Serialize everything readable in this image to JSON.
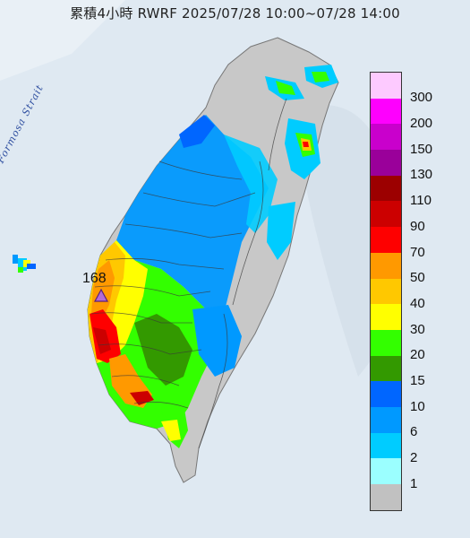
{
  "header": {
    "title": "累積4小時 RWRF 2025/07/28 10:00~07/28 14:00"
  },
  "map": {
    "strait_label": "Formosa Strait",
    "max_value_label": "168",
    "max_marker_icon": "triangle-icon",
    "colors": {
      "sea": "#dfe9f2",
      "land_no_rain": "#c8c8c8"
    }
  },
  "legend": {
    "entries": [
      {
        "label": "300",
        "color": "#fdcaff"
      },
      {
        "label": "200",
        "color": "#fe00fe"
      },
      {
        "label": "150",
        "color": "#c900cc"
      },
      {
        "label": "130",
        "color": "#9a009a"
      },
      {
        "label": "110",
        "color": "#9c0000"
      },
      {
        "label": "90",
        "color": "#cc0000"
      },
      {
        "label": "70",
        "color": "#fe0000"
      },
      {
        "label": "50",
        "color": "#ff9900"
      },
      {
        "label": "40",
        "color": "#ffc800"
      },
      {
        "label": "30",
        "color": "#ffff00"
      },
      {
        "label": "20",
        "color": "#33ff00"
      },
      {
        "label": "15",
        "color": "#339900"
      },
      {
        "label": "10",
        "color": "#0066ff"
      },
      {
        "label": "6",
        "color": "#0099ff"
      },
      {
        "label": "2",
        "color": "#00ccff"
      },
      {
        "label": "1",
        "color": "#9bffff"
      },
      {
        "label": "",
        "color": "#c1c1c1"
      }
    ]
  }
}
